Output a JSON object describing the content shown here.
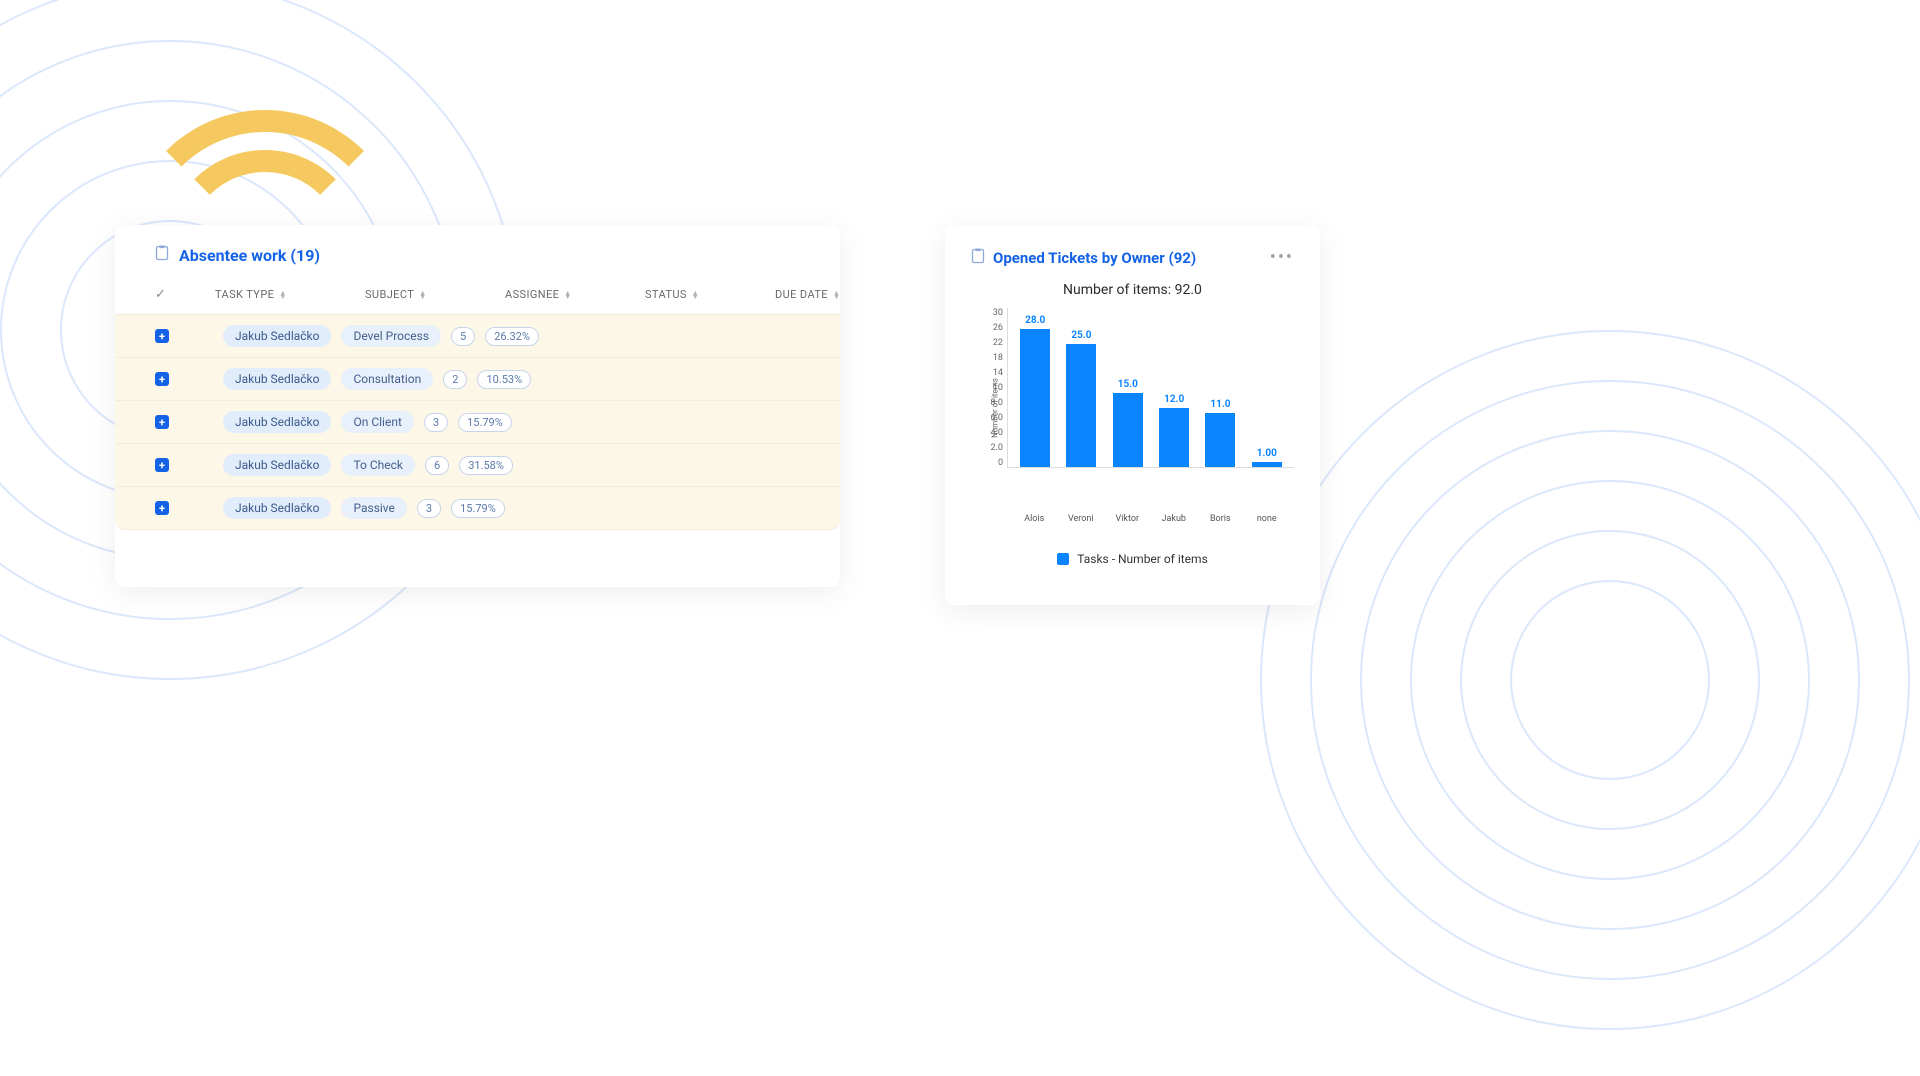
{
  "background": {
    "ring_color": "#dbe7fa",
    "yellow_arc_color": "#f5c95f"
  },
  "left_card": {
    "icon": "clipboard-icon",
    "title": "Absentee work (19)",
    "title_color": "#1463e6",
    "columns": [
      "TASK TYPE",
      "SUBJECT",
      "ASSIGNEE",
      "STATUS",
      "DUE DATE"
    ],
    "row_bg": "#fdf7e7",
    "chip_bg": "#e2edfb",
    "chip_color": "#3b5a8c",
    "pill_border": "#c7d5ea",
    "pill_color": "#5b7aa8",
    "expand_bg": "#1463e6",
    "rows": [
      {
        "task_type": "Jakub Sedlačko",
        "subject": "Devel Process",
        "count": "5",
        "percent": "26.32%"
      },
      {
        "task_type": "Jakub Sedlačko",
        "subject": "Consultation",
        "count": "2",
        "percent": "10.53%"
      },
      {
        "task_type": "Jakub Sedlačko",
        "subject": "On Client",
        "count": "3",
        "percent": "15.79%"
      },
      {
        "task_type": "Jakub Sedlačko",
        "subject": "To Check",
        "count": "6",
        "percent": "31.58%"
      },
      {
        "task_type": "Jakub Sedlačko",
        "subject": "Passive",
        "count": "3",
        "percent": "15.79%"
      }
    ]
  },
  "right_card": {
    "icon": "clipboard-icon",
    "title": "Opened Tickets by Owner (92)",
    "title_color": "#1463e6",
    "subtitle": "Number of items: 92.0",
    "y_label": "Number of items",
    "chart": {
      "type": "bar",
      "categories": [
        "Alois",
        "Veroni",
        "Viktor",
        "Jakub",
        "Boris",
        "none"
      ],
      "values": [
        28.0,
        25.0,
        15.0,
        12.0,
        11.0,
        1.0
      ],
      "value_labels": [
        "28.0",
        "25.0",
        "15.0",
        "12.0",
        "11.0",
        "1.00"
      ],
      "bar_color": "#0a84ff",
      "value_color": "#0a84ff",
      "ymax": 30,
      "yticks": [
        "30",
        "26",
        "22",
        "18",
        "14",
        "10",
        "8.0",
        "6.0",
        "4.0",
        "2.0",
        "0"
      ],
      "grid_color": "#dddddd",
      "background_color": "#ffffff",
      "label_fontsize": 9
    },
    "legend_label": "Tasks - Number of items",
    "legend_color": "#0a84ff"
  }
}
